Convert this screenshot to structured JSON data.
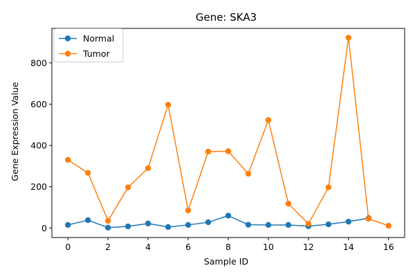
{
  "colors": {
    "normal": "#1f77b4",
    "tumor": "#ff7f0e",
    "frame": "#000000",
    "legend_border": "#cccccc"
  },
  "chart_data": {
    "type": "line",
    "title": "Gene: SKA3",
    "xlabel": "Sample ID",
    "ylabel": "Gene Expression Value",
    "xlim": [
      -0.8,
      16.8
    ],
    "ylim": [
      -46,
      967
    ],
    "xticks": [
      0,
      2,
      4,
      6,
      8,
      10,
      12,
      14,
      16
    ],
    "yticks": [
      0,
      200,
      400,
      600,
      800
    ],
    "legend_position": "top-left",
    "grid": false,
    "series": [
      {
        "name": "Normal",
        "color": "#1f77b4",
        "x": [
          0,
          1,
          2,
          3,
          4,
          5,
          6,
          7,
          8,
          9,
          10,
          11,
          12,
          13,
          14,
          15
        ],
        "y": [
          15,
          38,
          2,
          8,
          22,
          5,
          15,
          28,
          60,
          16,
          15,
          15,
          9,
          18,
          31,
          48
        ]
      },
      {
        "name": "Tumor",
        "color": "#ff7f0e",
        "x": [
          0,
          1,
          2,
          3,
          4,
          5,
          6,
          7,
          8,
          9,
          10,
          11,
          12,
          13,
          14,
          15,
          16
        ],
        "y": [
          330,
          267,
          35,
          197,
          290,
          597,
          85,
          370,
          372,
          263,
          523,
          118,
          20,
          197,
          922,
          45,
          11
        ]
      }
    ]
  }
}
